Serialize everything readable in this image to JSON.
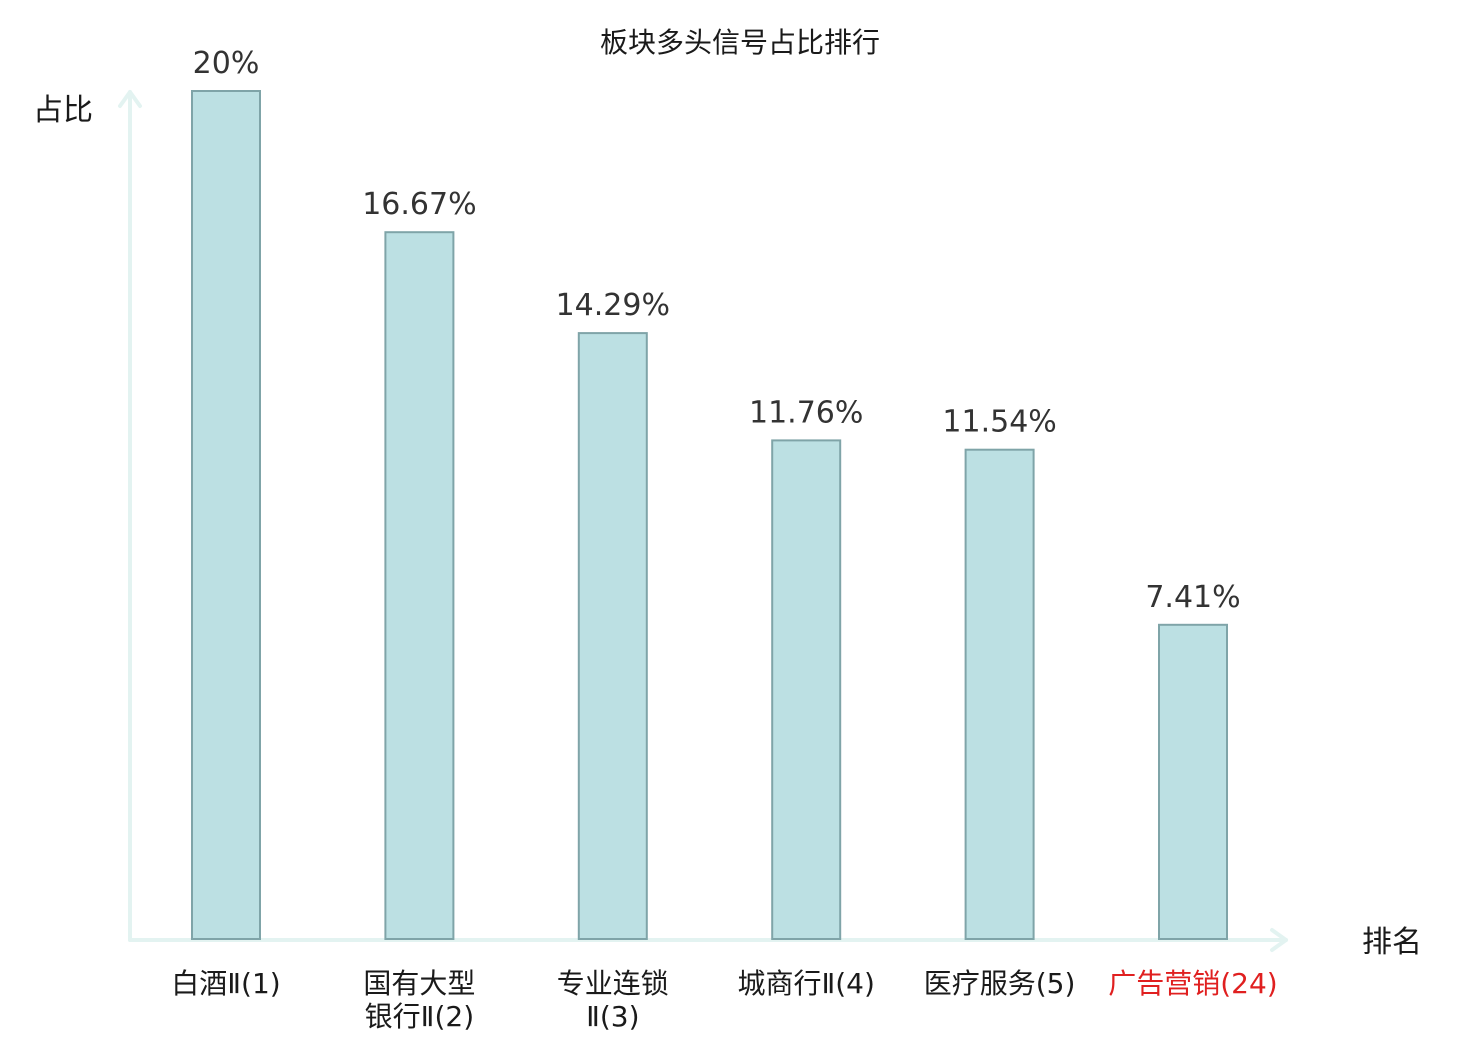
{
  "chart_data": {
    "type": "bar",
    "title": "板块多头信号占比排行",
    "ylabel": "占比",
    "xlabel": "排名",
    "categories": [
      "白酒Ⅱ(1)",
      "国有大型\n银行Ⅱ(2)",
      "专业连锁\nⅡ(3)",
      "城商行Ⅱ(4)",
      "医疗服务(5)",
      "广告营销(24)"
    ],
    "values": [
      20,
      16.67,
      14.29,
      11.76,
      11.54,
      7.41
    ],
    "value_labels": [
      "20%",
      "16.67%",
      "14.29%",
      "11.76%",
      "11.54%",
      "7.41%"
    ],
    "category_colors": [
      "#1a1a1a",
      "#1a1a1a",
      "#1a1a1a",
      "#1a1a1a",
      "#1a1a1a",
      "#e02020"
    ],
    "ylim": [
      0,
      20
    ],
    "grid": false,
    "legend": "none",
    "colors": {
      "bar_fill": "#bce0e3",
      "bar_stroke": "#7fa4a8",
      "axis": "#e3f3f1"
    }
  }
}
